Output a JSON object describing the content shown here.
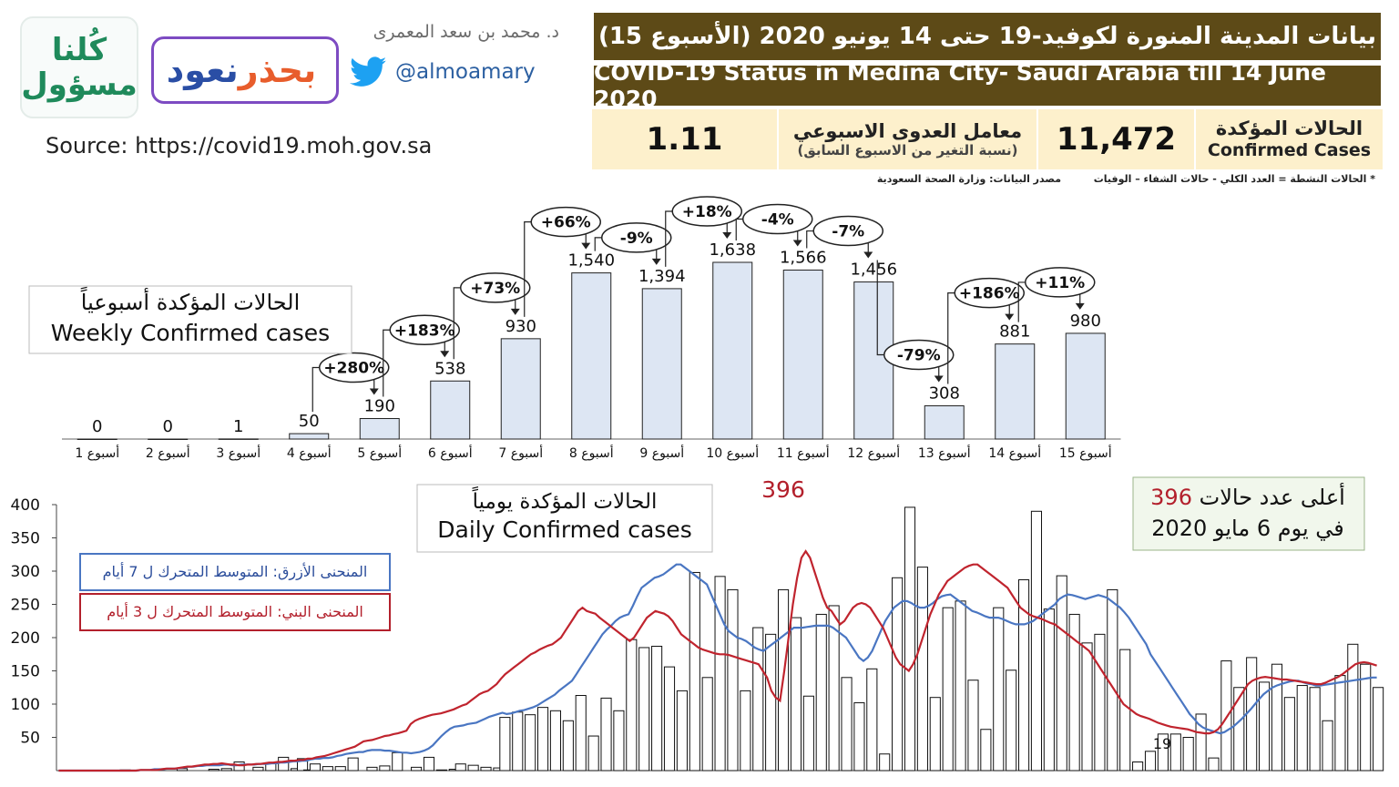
{
  "logos": {
    "kulna": "كُلنا مسؤول",
    "naud": {
      "word1": "نعود",
      "word2": "بحذر"
    }
  },
  "author": {
    "name": "د. محمد بن سعد المعمرى",
    "handle": "@almoamary"
  },
  "source": "Source: https://covid19.moh.gov.sa",
  "header": {
    "title_ar": "بيانات المدينة المنورة لكوفيد-19 حتى 14 يونيو 2020 (الأسبوع 15)",
    "title_en": "COVID-19 Status in Medina City- Saudi Arabia till 14 June 2020"
  },
  "stats": {
    "confirmed_label_ar": "الحالات المؤكدة",
    "confirmed_label_en": "Confirmed Cases",
    "confirmed_value": "11,472",
    "r_label": "معامل العدوى الاسبوعي",
    "r_sub": "(نسبة التغير من الاسبوع السابق)",
    "r_value": "1.11"
  },
  "notes": {
    "active": "* الحالات النشطة = العدد الكلي - حالات الشفاء – الوفيات",
    "source": "مصدر البيانات: وزارة الصحة السعودية"
  },
  "colors": {
    "header_bg": "#5d4a17",
    "stats_bg": "#fdf0cc",
    "bar_fill": "#dde6f3",
    "ma7": "#4a76c2",
    "ma3": "#c0242e",
    "peak_red": "#b3202c"
  },
  "chart_data": [
    {
      "type": "bar",
      "title_ar": "الحالات المؤكدة أسبوعياً",
      "title_en": "Weekly Confirmed cases",
      "categories": [
        "أسبوع 1",
        "أسبوع 2",
        "أسبوع 3",
        "أسبوع 4",
        "أسبوع 5",
        "أسبوع 6",
        "أسبوع 7",
        "أسبوع 8",
        "أسبوع 9",
        "أسبوع 10",
        "أسبوع 11",
        "أسبوع 12",
        "أسبوع 13",
        "أسبوع 14",
        "أسبوع 15"
      ],
      "values": [
        0,
        0,
        1,
        50,
        190,
        538,
        930,
        1540,
        1394,
        1638,
        1566,
        1456,
        308,
        881,
        980
      ],
      "value_labels": [
        "0",
        "0",
        "1",
        "50",
        "190",
        "538",
        "930",
        "1,540",
        "1,394",
        "1,638",
        "1,566",
        "1,456",
        "308",
        "881",
        "980"
      ],
      "changes": [
        {
          "to_week": 5,
          "label": "+280%"
        },
        {
          "to_week": 6,
          "label": "+183%"
        },
        {
          "to_week": 7,
          "label": "+73%"
        },
        {
          "to_week": 8,
          "label": "+66%"
        },
        {
          "to_week": 9,
          "label": "-9%"
        },
        {
          "to_week": 10,
          "label": "+18%"
        },
        {
          "to_week": 11,
          "label": "-4%"
        },
        {
          "to_week": 12,
          "label": "-7%"
        },
        {
          "to_week": 13,
          "label": "-79%"
        },
        {
          "to_week": 14,
          "label": "+186%"
        },
        {
          "to_week": 15,
          "label": "+11%"
        }
      ]
    },
    {
      "type": "bar",
      "title_ar": "الحالات المؤكدة يومياً",
      "title_en": "Daily Confirmed cases",
      "legend_ma7": "المنحنى الأزرق: المتوسط المتحرك ل 7 أيام",
      "legend_ma3": "المنحنى البني: المتوسط المتحرك ل 3 أيام",
      "peak_label": "396",
      "peak_box_line1_pre": "أعلى عدد حالات",
      "peak_box_line1_num": "396",
      "peak_box_line2": "في يوم 6 مايو 2020",
      "min_label": "19",
      "yticks": [
        50,
        100,
        150,
        200,
        250,
        300,
        350,
        400
      ],
      "ylim": [
        0,
        400
      ],
      "series": [
        {
          "values": [
            0,
            0,
            0,
            0,
            0,
            0,
            0,
            0,
            0,
            0,
            1,
            0,
            0,
            0,
            0,
            0,
            0,
            0,
            0,
            3,
            0,
            0,
            0,
            0,
            2,
            0,
            3,
            0,
            13,
            0,
            0,
            5,
            0,
            11,
            0,
            20,
            0,
            3,
            18,
            1,
            10,
            0,
            6,
            0,
            6,
            0,
            19,
            0,
            0,
            5,
            0,
            7,
            0,
            27,
            0,
            0,
            5,
            0,
            20,
            0,
            1,
            0,
            2,
            10,
            0,
            8,
            0,
            5,
            0,
            4,
            80,
            0,
            88,
            0,
            84,
            0,
            95,
            0,
            90,
            0,
            75,
            0,
            113,
            0,
            52,
            0,
            109,
            0,
            90,
            0,
            197,
            0,
            185,
            0,
            187,
            0,
            156,
            0,
            120,
            0,
            298,
            0,
            140,
            0,
            292,
            0,
            272,
            0,
            120,
            0,
            215,
            0,
            205,
            0,
            272,
            0,
            230,
            0,
            112,
            0,
            235,
            0,
            248,
            0,
            140,
            0,
            102,
            0,
            153,
            0,
            25,
            0,
            290,
            0,
            396,
            0,
            306,
            0,
            110,
            0,
            245,
            0,
            255,
            0,
            136,
            0,
            62,
            0,
            245,
            0,
            151,
            0,
            287,
            0,
            390,
            0,
            243,
            0,
            293,
            0,
            235,
            0,
            192,
            0,
            205,
            0,
            272,
            0,
            182,
            0,
            13,
            0,
            29,
            0,
            55,
            0,
            55,
            0,
            50,
            0,
            85,
            0,
            19,
            0,
            165,
            0,
            125,
            0,
            170,
            0,
            133,
            0,
            160,
            0,
            110,
            0,
            128,
            0,
            125,
            0,
            75,
            0,
            143,
            0,
            190,
            0,
            160,
            0,
            125
          ]
        },
        {
          "name": "MA7",
          "values": [
            0,
            0,
            0,
            0,
            0,
            0,
            0,
            0,
            0,
            0,
            0,
            0,
            0,
            0,
            0,
            0,
            0,
            0,
            0,
            1,
            1,
            1,
            2,
            2,
            2,
            3,
            3,
            3,
            4,
            5,
            6,
            6,
            7,
            7,
            8,
            8,
            8,
            8,
            9,
            9,
            8,
            8,
            9,
            9,
            9,
            9,
            10,
            10,
            10,
            11,
            11,
            12,
            12,
            13,
            14,
            14,
            15,
            15,
            17,
            18,
            18,
            19,
            19,
            20,
            22,
            23,
            25,
            26,
            27,
            28,
            28,
            30,
            31,
            31,
            31,
            30,
            30,
            29,
            28,
            27,
            27,
            26,
            27,
            28,
            30,
            33,
            38,
            45,
            52,
            58,
            63,
            66,
            67,
            68,
            70,
            71,
            72,
            75,
            78,
            81,
            83,
            85,
            87,
            85,
            86,
            88,
            90,
            91,
            93,
            95,
            98,
            102,
            106,
            110,
            114,
            120,
            125,
            130,
            135,
            145,
            155,
            165,
            175,
            185,
            195,
            205,
            212,
            218,
            225,
            230,
            233,
            235,
            248,
            262,
            275,
            280,
            285,
            290,
            292,
            295,
            300,
            305,
            310,
            310,
            305,
            300,
            295,
            290,
            285,
            280,
            265,
            250,
            235,
            220,
            210,
            205,
            200,
            198,
            195,
            190,
            185,
            182,
            180,
            185,
            190,
            195,
            200,
            205,
            210,
            215,
            215,
            215,
            216,
            217,
            218,
            218,
            218,
            218,
            215,
            210,
            205,
            200,
            190,
            180,
            170,
            165,
            170,
            180,
            195,
            210,
            225,
            235,
            245,
            250,
            255,
            255,
            252,
            248,
            245,
            245,
            248,
            252,
            258,
            262,
            264,
            265,
            260,
            255,
            250,
            245,
            240,
            238,
            235,
            232,
            230,
            230,
            230,
            228,
            225,
            222,
            220,
            220,
            220,
            222,
            225,
            230,
            235,
            240,
            245,
            250,
            258,
            262,
            265,
            264,
            262,
            260,
            258,
            260,
            262,
            264,
            262,
            260,
            255,
            250,
            245,
            238,
            230,
            220,
            210,
            200,
            190,
            175,
            165,
            155,
            145,
            135,
            125,
            115,
            105,
            95,
            85,
            78,
            70,
            65,
            62,
            60,
            58,
            56,
            58,
            62,
            66,
            72,
            78,
            85,
            92,
            100,
            108,
            115,
            120,
            125,
            128,
            130,
            132,
            134,
            135,
            135,
            133,
            131,
            130,
            128,
            128,
            129,
            130,
            131,
            132,
            133,
            134,
            135,
            136,
            137,
            138,
            139,
            140,
            140
          ]
        },
        {
          "name": "MA3",
          "values": [
            0,
            0,
            0,
            0,
            0,
            0,
            0,
            0,
            0,
            0,
            0,
            0,
            0,
            0,
            0,
            0,
            0,
            0,
            0,
            1,
            1,
            1,
            1,
            1,
            2,
            3,
            3,
            3,
            4,
            5,
            6,
            6,
            7,
            8,
            9,
            9,
            10,
            10,
            11,
            10,
            9,
            9,
            8,
            8,
            9,
            9,
            10,
            10,
            11,
            12,
            12,
            13,
            13,
            14,
            15,
            15,
            16,
            16,
            18,
            18,
            20,
            21,
            22,
            24,
            26,
            28,
            30,
            32,
            34,
            36,
            40,
            44,
            45,
            46,
            48,
            50,
            52,
            53,
            55,
            56,
            58,
            60,
            70,
            75,
            78,
            80,
            82,
            84,
            85,
            86,
            88,
            90,
            92,
            95,
            98,
            100,
            105,
            110,
            115,
            118,
            120,
            125,
            130,
            138,
            145,
            150,
            155,
            160,
            165,
            170,
            175,
            178,
            182,
            185,
            188,
            190,
            195,
            200,
            210,
            220,
            230,
            240,
            245,
            240,
            238,
            236,
            230,
            225,
            220,
            215,
            210,
            205,
            200,
            195,
            200,
            210,
            220,
            230,
            235,
            240,
            238,
            236,
            232,
            225,
            215,
            205,
            200,
            195,
            190,
            185,
            182,
            180,
            178,
            176,
            175,
            175,
            174,
            172,
            170,
            168,
            166,
            164,
            162,
            160,
            150,
            140,
            120,
            110,
            105,
            150,
            200,
            250,
            290,
            320,
            330,
            320,
            300,
            280,
            260,
            245,
            240,
            230,
            220,
            225,
            235,
            245,
            250,
            252,
            250,
            245,
            235,
            225,
            215,
            200,
            185,
            170,
            160,
            155,
            150,
            160,
            175,
            195,
            215,
            235,
            250,
            265,
            275,
            285,
            290,
            295,
            300,
            305,
            308,
            310,
            310,
            305,
            300,
            295,
            290,
            285,
            280,
            275,
            265,
            255,
            245,
            240,
            235,
            232,
            230,
            228,
            225,
            222,
            220,
            215,
            210,
            205,
            200,
            195,
            190,
            185,
            180,
            170,
            160,
            150,
            140,
            130,
            120,
            110,
            100,
            95,
            90,
            85,
            82,
            80,
            78,
            75,
            72,
            70,
            68,
            66,
            65,
            64,
            63,
            62,
            60,
            58,
            57,
            56,
            56,
            58,
            62,
            70,
            80,
            90,
            100,
            110,
            120,
            130,
            135,
            138,
            140,
            141,
            140,
            139,
            138,
            137,
            137,
            136,
            135,
            134,
            133,
            132,
            131,
            130,
            130,
            132,
            135,
            138,
            141,
            145,
            150,
            155,
            160,
            162,
            163,
            162,
            160,
            158
          ]
        }
      ]
    }
  ]
}
